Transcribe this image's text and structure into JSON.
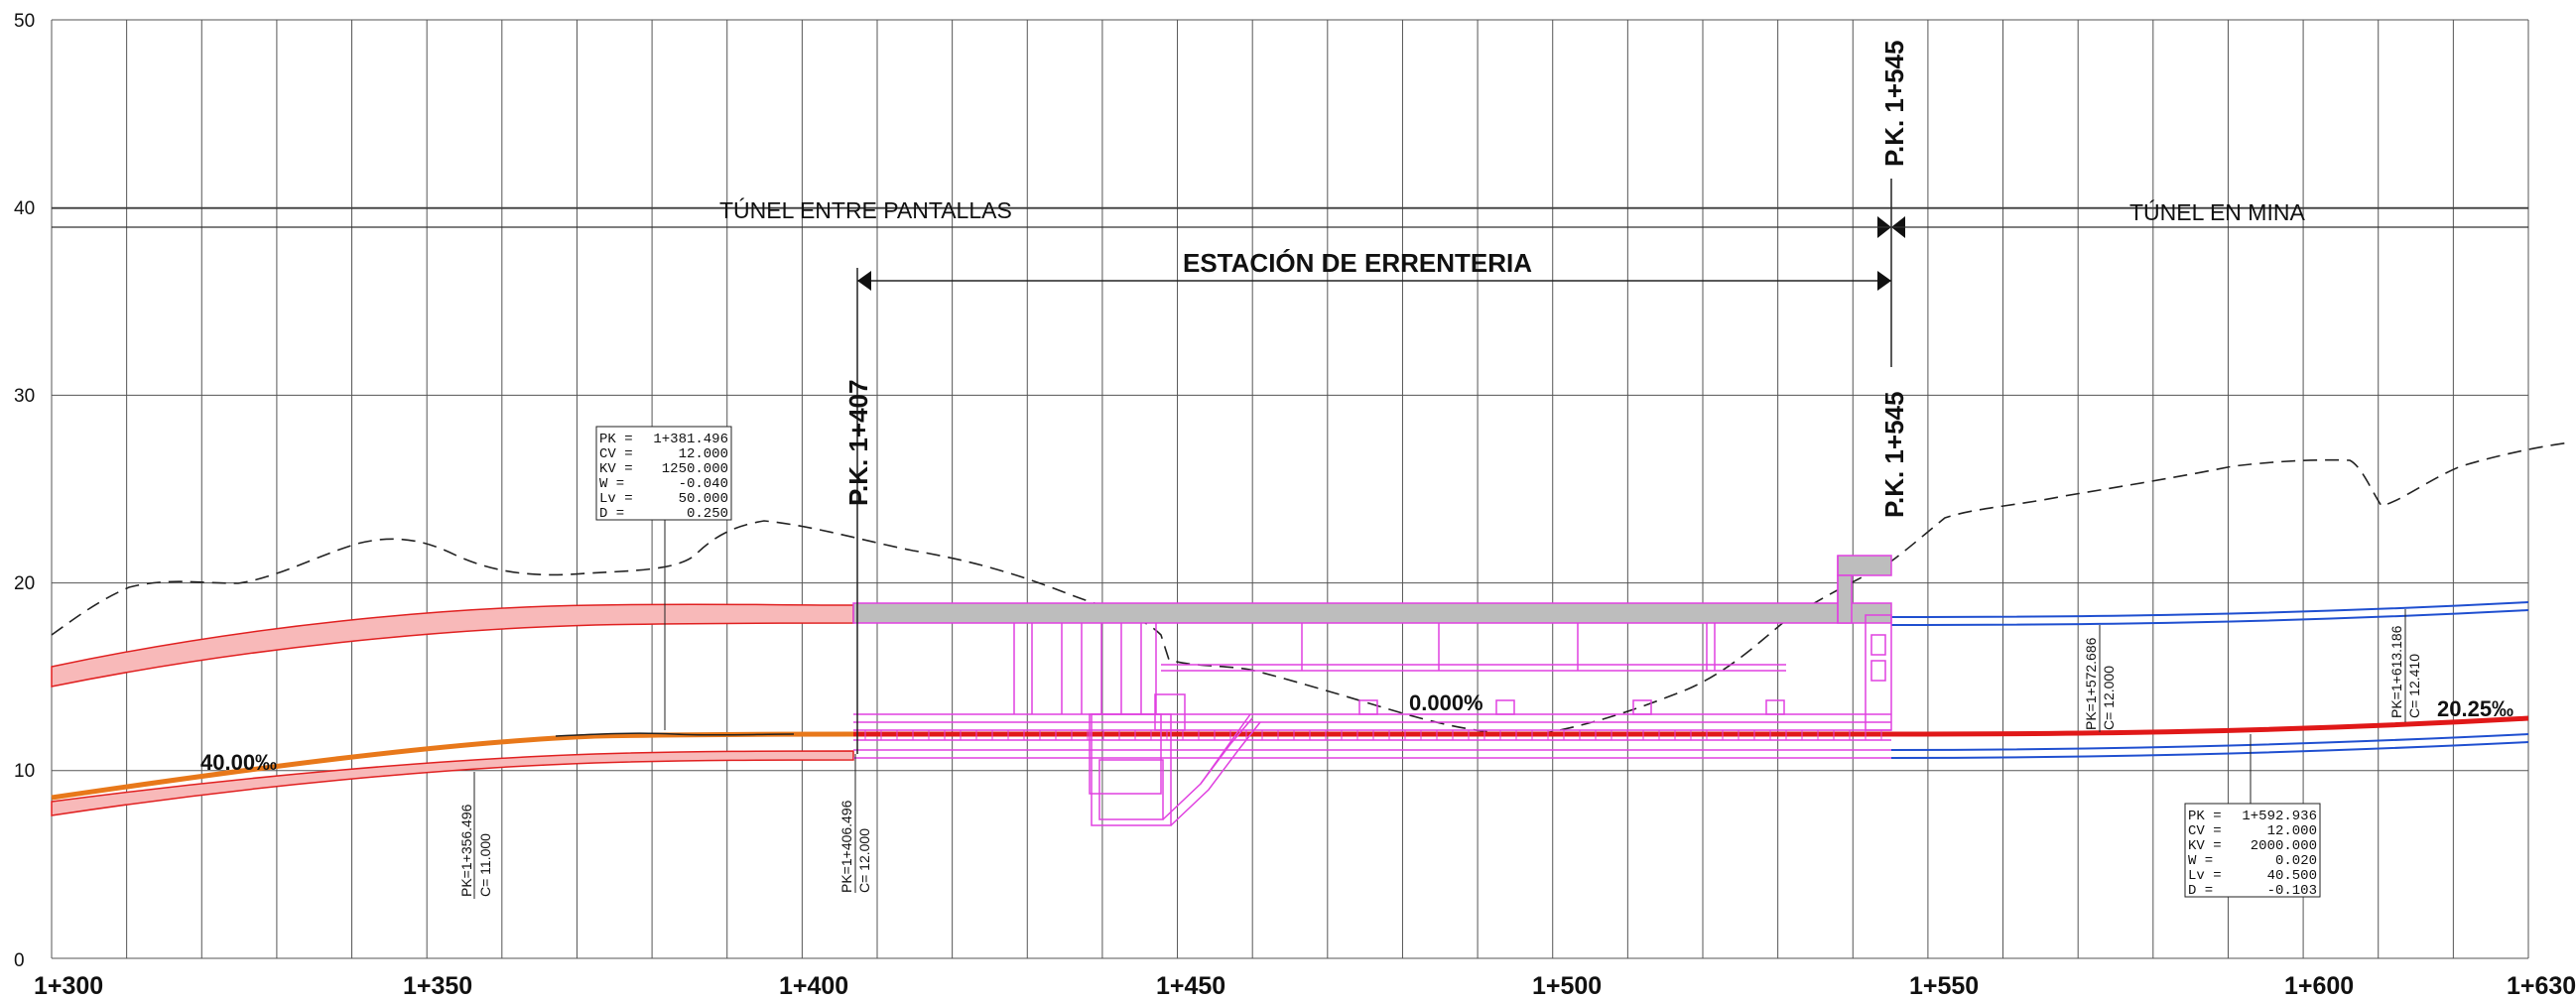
{
  "y_axis": {
    "ticks": [
      "0",
      "10",
      "20",
      "30",
      "40",
      "50"
    ]
  },
  "x_axis": {
    "ticks": [
      "1+300",
      "1+350",
      "1+400",
      "1+450",
      "1+500",
      "1+550",
      "1+600",
      "1+630"
    ]
  },
  "sections": {
    "left": "TÚNEL ENTRE PANTALLAS",
    "right": "TÚNEL EN MINA",
    "station": "ESTACIÓN DE ERRENTERIA"
  },
  "pk_markers": {
    "start": "P.K. 1+407",
    "end_top": "P.K. 1+545",
    "end_bottom": "P.K. 1+545"
  },
  "slopes": {
    "left": "40.00‰",
    "middle": "0.000%",
    "right": "20.25‰"
  },
  "curve_box_1": {
    "rows": [
      {
        "k": "PK =",
        "v": "1+381.496"
      },
      {
        "k": "CV =",
        "v": "12.000"
      },
      {
        "k": "KV =",
        "v": "1250.000"
      },
      {
        "k": "W  =",
        "v": "-0.040"
      },
      {
        "k": "Lv =",
        "v": "50.000"
      },
      {
        "k": "D  =",
        "v": "0.250"
      }
    ]
  },
  "curve_box_2": {
    "rows": [
      {
        "k": "PK =",
        "v": "1+592.936"
      },
      {
        "k": "CV =",
        "v": "12.000"
      },
      {
        "k": "KV =",
        "v": "2000.000"
      },
      {
        "k": "W  =",
        "v": "0.020"
      },
      {
        "k": "Lv =",
        "v": "40.500"
      },
      {
        "k": "D  =",
        "v": "-0.103"
      }
    ]
  },
  "vertical_labels": {
    "l1": {
      "pk": "PK=1+356.496",
      "c": "C= 11.000"
    },
    "l2": {
      "pk": "PK=1+406.496",
      "c": "C= 12.000"
    },
    "l3": {
      "pk": "PK=1+572.686",
      "c": "C= 12.000"
    },
    "l4": {
      "pk": "PK=1+613.186",
      "c": "C= 12.410"
    }
  },
  "colors": {
    "grid": "#555555",
    "tunnel_fill": "#f8b9b9",
    "tunnel_line": "#e02020",
    "rail_orange": "#e8781a",
    "rail_red": "#e01818",
    "mine_blue": "#1f4fd0",
    "station_magenta": "#e040e0",
    "slab_gray": "#bdbdbd"
  }
}
